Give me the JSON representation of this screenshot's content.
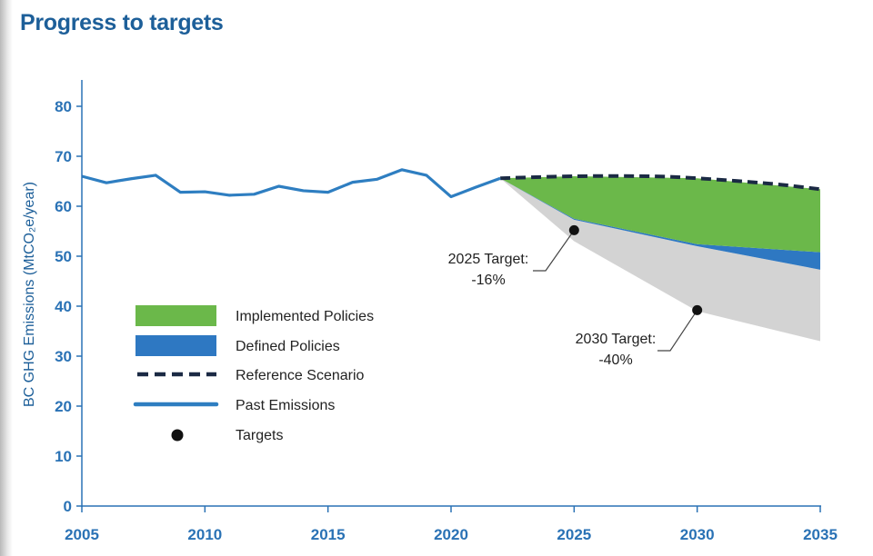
{
  "title": "Progress to targets",
  "chart_data": {
    "type": "area",
    "ylabel": "BC GHG Emissions (MtCO₂e/year)",
    "xlabel": "",
    "xlim": [
      2005,
      2035
    ],
    "ylim": [
      0,
      85
    ],
    "x_ticks": [
      2005,
      2010,
      2015,
      2020,
      2025,
      2030,
      2035
    ],
    "y_ticks": [
      0,
      10,
      20,
      30,
      40,
      50,
      60,
      70,
      80
    ],
    "grid": false,
    "legend_position": "left",
    "colors": {
      "implemented": "#6bb84a",
      "defined": "#2e78c2",
      "pathway": "#d3d3d3",
      "reference": "#1b2a44",
      "past": "#2e7ec1",
      "target": "#111111",
      "axis": "#2a72b5"
    },
    "series": [
      {
        "name": "Past Emissions",
        "style": "solid-line",
        "x": [
          2005,
          2006,
          2007,
          2008,
          2009,
          2010,
          2011,
          2012,
          2013,
          2014,
          2015,
          2016,
          2017,
          2018,
          2019,
          2020,
          2021,
          2022
        ],
        "y": [
          66.0,
          64.7,
          65.5,
          66.2,
          62.8,
          62.9,
          62.2,
          62.4,
          64.0,
          63.1,
          62.8,
          64.8,
          65.4,
          67.3,
          66.2,
          61.9,
          63.8,
          65.6
        ]
      },
      {
        "name": "Reference Scenario",
        "style": "dashed-line",
        "x": [
          2022,
          2025,
          2028,
          2030,
          2033,
          2035
        ],
        "y": [
          65.6,
          66.0,
          66.0,
          65.6,
          64.5,
          63.4
        ]
      },
      {
        "name": "Implemented Policies",
        "style": "filled-area",
        "x": [
          2022,
          2025,
          2030,
          2035
        ],
        "y_upper": [
          65.6,
          66.0,
          65.6,
          63.4
        ],
        "y_lower": [
          65.6,
          57.5,
          52.4,
          50.8
        ]
      },
      {
        "name": "Defined Policies",
        "style": "filled-area",
        "x": [
          2022,
          2025,
          2030,
          2035
        ],
        "y_upper": [
          65.6,
          57.5,
          52.4,
          50.8
        ],
        "y_lower": [
          65.6,
          57.3,
          52.0,
          47.3
        ]
      },
      {
        "name": "Targets",
        "style": "points",
        "x": [
          2025,
          2030
        ],
        "y": [
          55.2,
          39.2
        ]
      }
    ],
    "pathway_band": {
      "x": [
        2022,
        2025,
        2030,
        2035
      ],
      "y_upper": [
        65.6,
        57.3,
        52.0,
        47.3
      ],
      "y_lower": [
        65.6,
        53.0,
        39.0,
        33.0
      ]
    },
    "legend": [
      {
        "label": "Implemented Policies",
        "symbol": "swatch-green"
      },
      {
        "label": "Defined Policies",
        "symbol": "swatch-blue"
      },
      {
        "label": "Reference Scenario",
        "symbol": "dashed-line"
      },
      {
        "label": "Past Emissions",
        "symbol": "solid-line"
      },
      {
        "label": "Targets",
        "symbol": "dot"
      }
    ],
    "annotations": [
      {
        "lines": [
          "2025 Target:",
          "-16%"
        ],
        "target_year": 2025,
        "target_value": 55.2
      },
      {
        "lines": [
          "2030 Target:",
          "-40%"
        ],
        "target_year": 2030,
        "target_value": 39.2
      }
    ]
  }
}
